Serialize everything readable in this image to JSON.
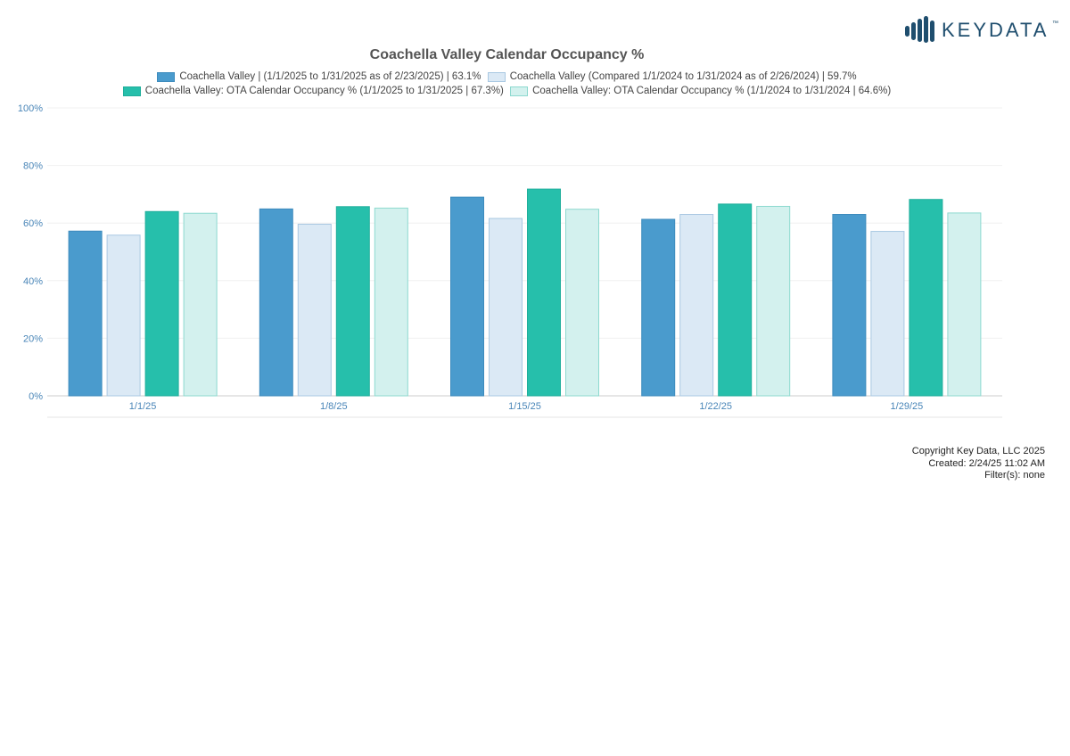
{
  "brand": {
    "name": "KEYDATA",
    "trademark": "™",
    "color": "#1f4e6e"
  },
  "chart_data": {
    "type": "bar",
    "title": "Coachella Valley Calendar Occupancy %",
    "categories": [
      "1/1/25",
      "1/8/25",
      "1/15/25",
      "1/22/25",
      "1/29/25"
    ],
    "ylim": [
      0,
      100
    ],
    "yticks": [
      0,
      20,
      40,
      60,
      80,
      100
    ],
    "ytick_labels": [
      "0%",
      "20%",
      "40%",
      "60%",
      "80%",
      "100%"
    ],
    "grid": true,
    "legend_position": "top",
    "series": [
      {
        "name": "Coachella Valley | (1/1/2025 to 1/31/2025 as of 2/23/2025) | 63.1%",
        "values": [
          57.2,
          64.9,
          69.0,
          61.3,
          63.0
        ],
        "fill": "#4a9bcd",
        "stroke": "#3d8bbd"
      },
      {
        "name": "Coachella Valley (Compared 1/1/2024 to 1/31/2024 as of 2/26/2024) | 59.7%",
        "values": [
          55.8,
          59.6,
          61.6,
          63.0,
          57.1
        ],
        "fill": "#dbe9f5",
        "stroke": "#a9c8e2"
      },
      {
        "name": "Coachella Valley: OTA Calendar Occupancy % (1/1/2025 to 1/31/2025 | 67.3%)",
        "values": [
          64.0,
          65.7,
          71.8,
          66.6,
          68.2
        ],
        "fill": "#26bfab",
        "stroke": "#1fae9b"
      },
      {
        "name": "Coachella Valley: OTA Calendar Occupancy % (1/1/2024 to 1/31/2024 | 64.6%)",
        "values": [
          63.4,
          65.2,
          64.8,
          65.8,
          63.5
        ],
        "fill": "#d3f1ee",
        "stroke": "#8dd9cf"
      }
    ]
  },
  "footer": {
    "copyright": "Copyright Key Data, LLC 2025",
    "created": "Created: 2/24/25 11:02 AM",
    "filters": "Filter(s): none"
  }
}
